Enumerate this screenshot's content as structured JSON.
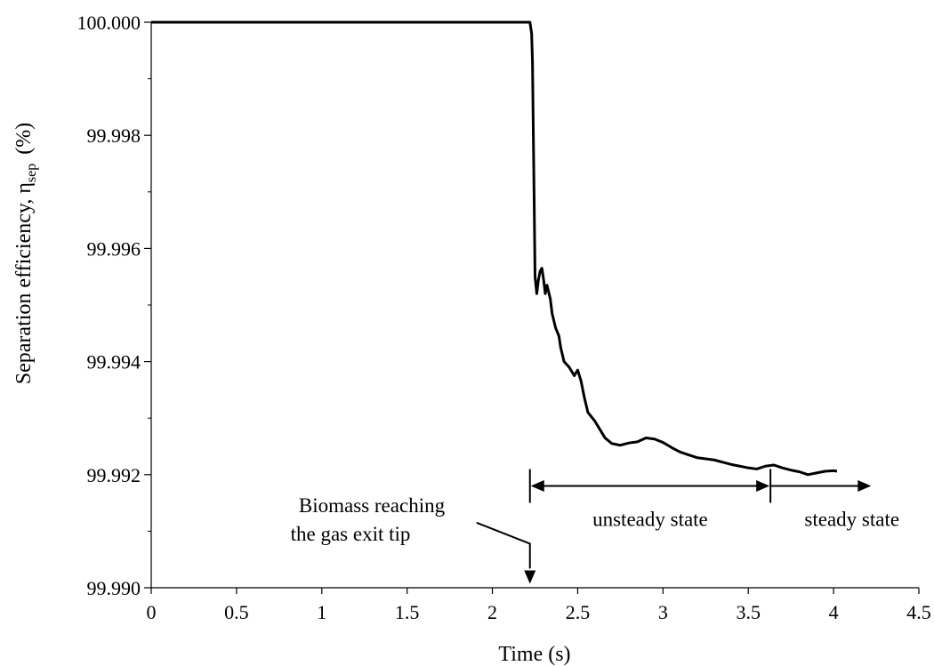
{
  "chart_data": {
    "type": "line",
    "xlabel": "Time (s)",
    "ylabel_main": "Separation efficiency, η",
    "ylabel_sub": "sep",
    "ylabel_unit": "(%)",
    "xlim": [
      0,
      4.5
    ],
    "ylim": [
      99.99,
      100.0
    ],
    "xticks": [
      0,
      0.5,
      1,
      1.5,
      2,
      2.5,
      3,
      3.5,
      4,
      4.5
    ],
    "xtick_labels": [
      "0",
      "0.5",
      "1",
      "1.5",
      "2",
      "2.5",
      "3",
      "3.5",
      "4",
      "4.5"
    ],
    "yticks": [
      99.99,
      99.992,
      99.994,
      99.996,
      99.998,
      100.0
    ],
    "ytick_labels": [
      "99.990",
      "99.992",
      "99.994",
      "99.996",
      "99.998",
      "100.000"
    ],
    "grid": false,
    "line_color": "#000000",
    "series": [
      {
        "x": [
          0,
          2.2,
          2.22,
          2.23,
          2.235,
          2.24,
          2.245,
          2.25,
          2.255,
          2.26,
          2.27,
          2.28,
          2.29,
          2.3,
          2.31,
          2.32,
          2.34,
          2.35,
          2.37,
          2.39,
          2.4,
          2.42,
          2.45,
          2.48,
          2.5,
          2.52,
          2.54,
          2.56,
          2.6,
          2.63,
          2.66,
          2.7,
          2.75,
          2.8,
          2.85,
          2.9,
          2.95,
          3.0,
          3.05,
          3.1,
          3.15,
          3.2,
          3.25,
          3.3,
          3.35,
          3.4,
          3.45,
          3.5,
          3.55,
          3.6,
          3.65,
          3.7,
          3.75,
          3.8,
          3.85,
          3.9,
          3.95,
          4.0,
          4.02
        ],
        "y": [
          100.0,
          100.0,
          100.0,
          99.9998,
          99.9993,
          99.998,
          99.9968,
          99.9955,
          99.99535,
          99.9952,
          99.99545,
          99.9956,
          99.99565,
          99.99545,
          99.9952,
          99.99535,
          99.9951,
          99.99485,
          99.9946,
          99.99445,
          99.99425,
          99.994,
          99.9939,
          99.99375,
          99.99385,
          99.99365,
          99.99335,
          99.9931,
          99.99295,
          99.9928,
          99.99265,
          99.99255,
          99.99252,
          99.99256,
          99.99258,
          99.99265,
          99.99263,
          99.99257,
          99.99248,
          99.9924,
          99.99235,
          99.9923,
          99.99228,
          99.99226,
          99.99222,
          99.99218,
          99.99215,
          99.99212,
          99.9921,
          99.99215,
          99.99217,
          99.99212,
          99.99208,
          99.99205,
          99.992,
          99.99203,
          99.99206,
          99.99207,
          99.99206
        ]
      }
    ],
    "annotations": {
      "biomass_line1": "Biomass reaching",
      "biomass_line2": "the gas exit tip",
      "unsteady": "unsteady state",
      "steady": "steady state"
    },
    "annotation_positions": {
      "biomass_arrow_x": 2.22,
      "unsteady_start_x": 2.22,
      "unsteady_end_x": 3.63,
      "steady_end_x": 4.22,
      "state_arrow_y": 99.9918
    }
  }
}
